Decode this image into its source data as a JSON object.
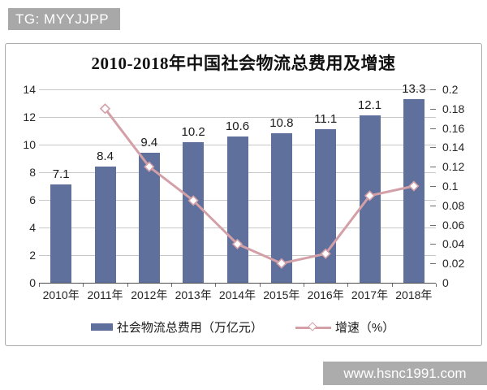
{
  "page": {
    "badge": "TG: MYYJJPP",
    "watermark": "www.hsnc1991.com",
    "colors": {
      "badge_bg": "#A8A8A8",
      "watermark_bg": "#ACACAC",
      "bar": "#60709C",
      "line": "#D4A0A7",
      "grid": "#C8C8C8",
      "axis": "#4D4D4D"
    }
  },
  "chart_data": {
    "type": "bar",
    "subtype": "bar-line-combo",
    "title": "2010-2018年中国社会物流总费用及增速",
    "categories": [
      "2010年",
      "2011年",
      "2012年",
      "2013年",
      "2014年",
      "2015年",
      "2016年",
      "2017年",
      "2018年"
    ],
    "series": [
      {
        "name": "社会物流总费用（万亿元）",
        "type": "bar",
        "axis": "left",
        "color": "#60709C",
        "values": [
          7.1,
          8.4,
          9.4,
          10.2,
          10.6,
          10.8,
          11.1,
          12.1,
          13.3
        ],
        "labels": [
          "7.1",
          "8.4",
          "9.4",
          "10.2",
          "10.6",
          "10.8",
          "11.1",
          "12.1",
          "13.3"
        ]
      },
      {
        "name": "增速（%）",
        "type": "line",
        "axis": "right",
        "color": "#D4A0A7",
        "marker": "open-diamond",
        "values": [
          null,
          0.18,
          0.12,
          0.085,
          0.04,
          0.02,
          0.03,
          0.09,
          0.1
        ]
      }
    ],
    "left_axis": {
      "min": 0,
      "max": 14,
      "step": 2,
      "ticks": [
        "0",
        "2",
        "4",
        "6",
        "8",
        "10",
        "12",
        "14"
      ]
    },
    "right_axis": {
      "min": 0,
      "max": 0.2,
      "step": 0.02,
      "ticks": [
        "0",
        "0.02",
        "0.04",
        "0.06",
        "0.08",
        "0.1",
        "0.12",
        "0.14",
        "0.16",
        "0.18",
        "0.2"
      ]
    },
    "grid": true,
    "legend_position": "bottom"
  }
}
